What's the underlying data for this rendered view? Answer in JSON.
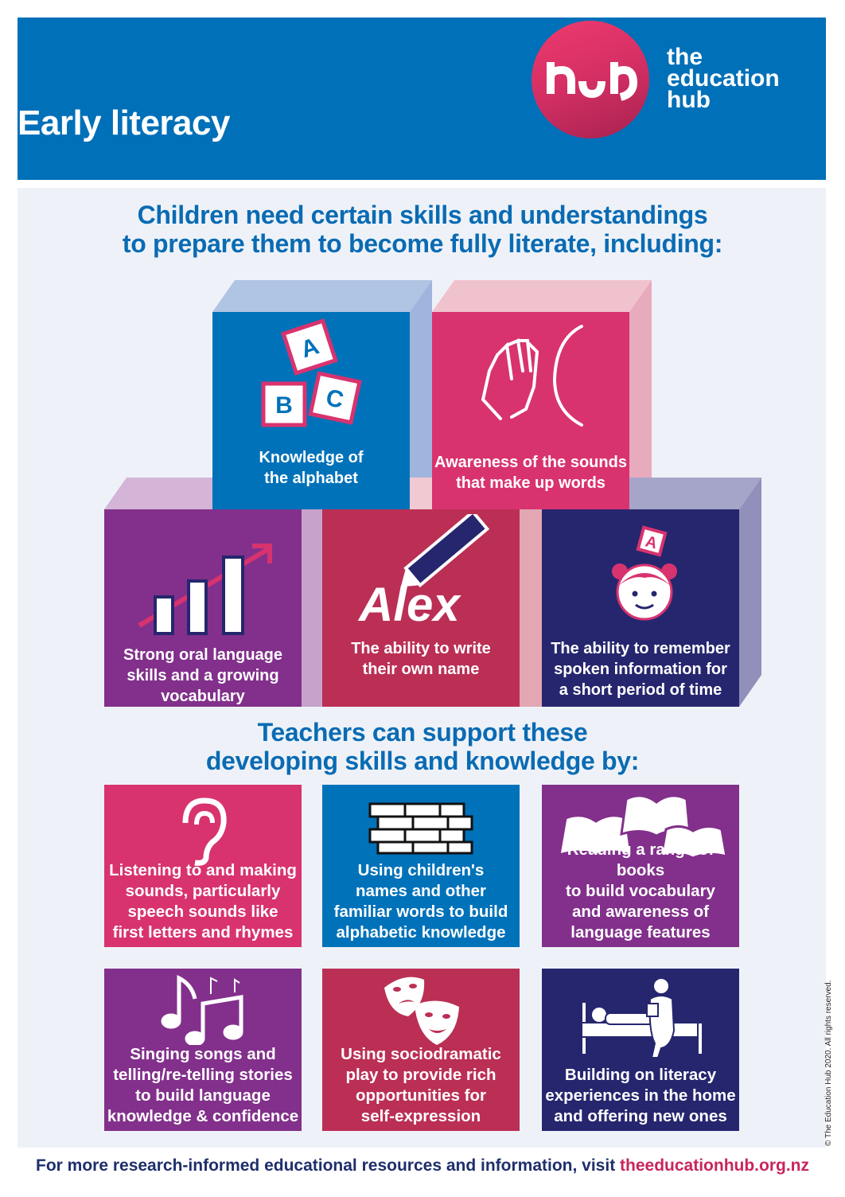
{
  "header": {
    "title": "Early literacy",
    "logo_text_lines": [
      "the",
      "education",
      "hub"
    ],
    "logo_mark": "hub"
  },
  "heading1": [
    "Children need certain skills and understandings",
    "to prepare them to become fully literate, including:"
  ],
  "skills": [
    {
      "label": [
        "Knowledge of",
        "the alphabet"
      ],
      "icon": "abc-blocks-icon",
      "color": "#0072b9"
    },
    {
      "label": [
        "Awareness of the sounds",
        "that make up words"
      ],
      "icon": "clapping-hand-icon",
      "color": "#d8336f"
    },
    {
      "label": [
        "Strong oral language",
        "skills and a growing",
        "vocabulary"
      ],
      "icon": "growth-bar-chart-icon",
      "color": "#82308b"
    },
    {
      "label": [
        "The ability to write",
        "their own name"
      ],
      "icon": "pencil-writing-icon",
      "written_name": "Alex",
      "color": "#bb2f55"
    },
    {
      "label": [
        "The ability to remember",
        "spoken information for",
        "a short period of time"
      ],
      "icon": "child-remembering-icon",
      "color": "#26266f"
    }
  ],
  "heading2": [
    "Teachers can support these",
    "developing skills and knowledge by:"
  ],
  "supports": [
    {
      "label": [
        "Listening to and making",
        "sounds, particularly",
        "speech sounds like",
        "first letters and rhymes"
      ],
      "icon": "ear-icon",
      "color": "#d8336f"
    },
    {
      "label": [
        "Using children's",
        "names and other",
        "familiar words to build",
        "alphabetic knowledge"
      ],
      "icon": "brick-wall-icon",
      "color": "#0072b9"
    },
    {
      "label": [
        "Reading a range of books",
        "to build vocabulary",
        "and awareness of",
        "language features"
      ],
      "icon": "open-books-icon",
      "color": "#82308b"
    },
    {
      "label": [
        "Singing songs and",
        "telling/re-telling stories",
        "to build language",
        "knowledge & confidence"
      ],
      "icon": "music-notes-icon",
      "color": "#82308b"
    },
    {
      "label": [
        "Using sociodramatic",
        "play to provide rich",
        "opportunities for",
        "self-expression"
      ],
      "icon": "theatre-masks-icon",
      "color": "#bb2f55"
    },
    {
      "label": [
        "Building on literacy",
        "experiences in the home",
        "and offering new ones"
      ],
      "icon": "bedtime-reading-icon",
      "color": "#26266f"
    }
  ],
  "footer": {
    "text": "For more research-informed educational resources and information, visit ",
    "link": "theeducationhub.org.nz"
  },
  "copyright": "© The Education Hub 2020. All rights reserved."
}
